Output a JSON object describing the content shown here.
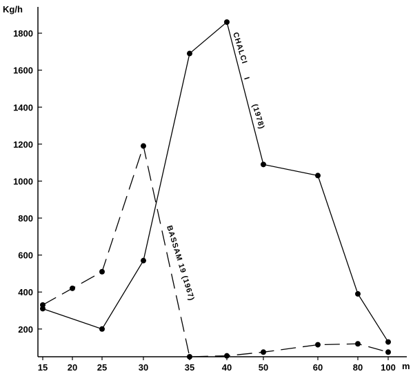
{
  "chart_data": {
    "type": "line",
    "ylabel": "Kg/h",
    "xlabel": "m",
    "ylim": [
      0,
      1900
    ],
    "y_ticks": [
      {
        "value": 200,
        "label": "200"
      },
      {
        "value": 400,
        "label": "400"
      },
      {
        "value": 600,
        "label": "600"
      },
      {
        "value": 800,
        "label": "800"
      },
      {
        "value": 1000,
        "label": "1000"
      },
      {
        "value": 1200,
        "label": "1200"
      },
      {
        "value": 1400,
        "label": "1400"
      },
      {
        "value": 1600,
        "label": "1600"
      },
      {
        "value": 1800,
        "label": "1800"
      }
    ],
    "categories": [
      "15",
      "20",
      "25",
      "30",
      "35",
      "40",
      "50",
      "60",
      "80",
      "100"
    ],
    "grid": false,
    "legend": "none (series labelled along lines)",
    "series": [
      {
        "name": "CHALCI I (1978)",
        "line_style": "solid",
        "points": [
          {
            "x": "15",
            "y": 310
          },
          {
            "x": "25",
            "y": 200
          },
          {
            "x": "30",
            "y": 570
          },
          {
            "x": "35",
            "y": 1690
          },
          {
            "x": "40",
            "y": 1860
          },
          {
            "x": "50",
            "y": 1090
          },
          {
            "x": "60",
            "y": 1030
          },
          {
            "x": "80",
            "y": 390
          },
          {
            "x": "100",
            "y": 130
          }
        ]
      },
      {
        "name": "BASSAM 19 (1967)",
        "line_style": "dashed",
        "points": [
          {
            "x": "15",
            "y": 330
          },
          {
            "x": "20",
            "y": 420
          },
          {
            "x": "25",
            "y": 510
          },
          {
            "x": "30",
            "y": 1190
          },
          {
            "x": "35",
            "y": 50
          },
          {
            "x": "40",
            "y": 55
          },
          {
            "x": "50",
            "y": 75
          },
          {
            "x": "60",
            "y": 115
          },
          {
            "x": "80",
            "y": 120
          },
          {
            "x": "100",
            "y": 75
          }
        ]
      }
    ],
    "series_labels": [
      {
        "text": "CHALCI",
        "series": 0
      },
      {
        "text": "I",
        "series": 0
      },
      {
        "text": "(1978)",
        "series": 0
      },
      {
        "text": "BASSAM 19 (1967)",
        "series": 1
      }
    ]
  }
}
